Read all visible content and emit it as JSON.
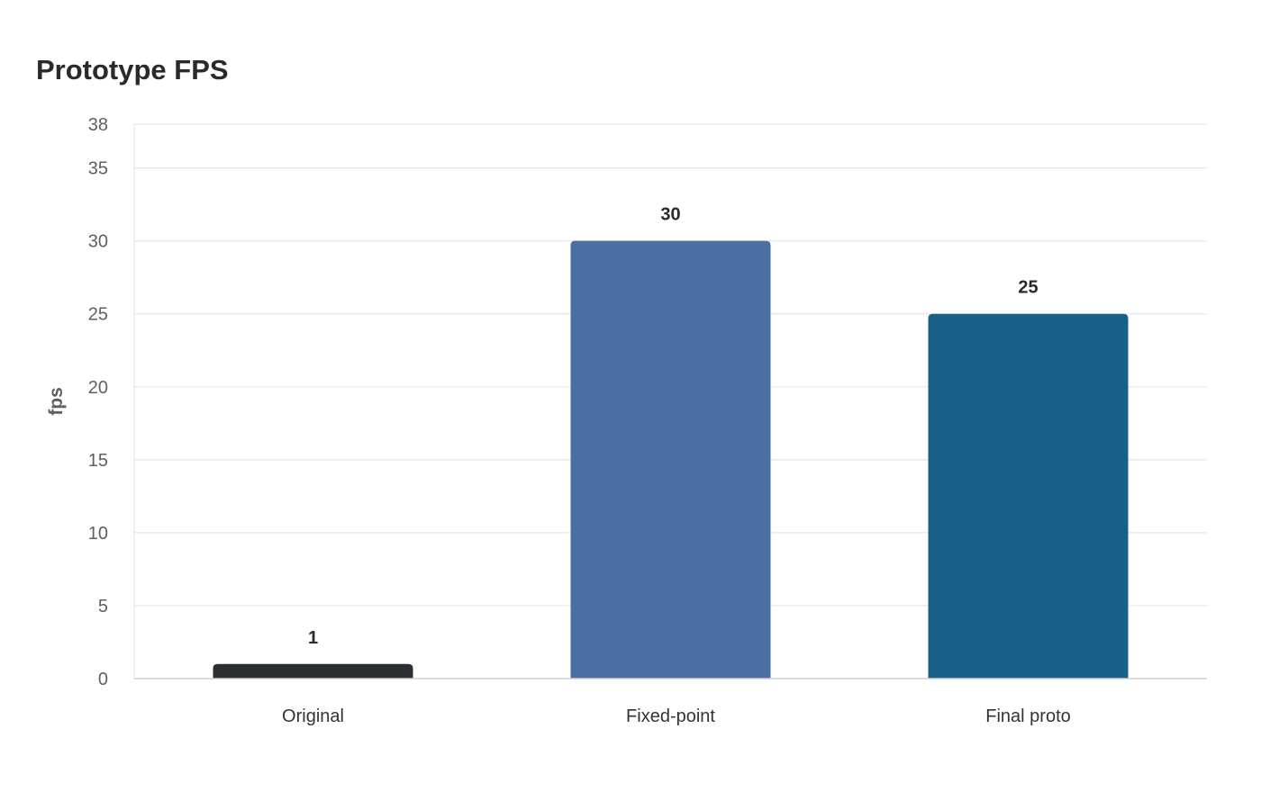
{
  "chart_data": {
    "type": "bar",
    "title": "Prototype FPS",
    "xlabel": "",
    "ylabel": "fps",
    "categories": [
      "Original",
      "Fixed-point",
      "Final proto"
    ],
    "values": [
      1,
      30,
      25
    ],
    "data_labels": [
      "1",
      "30",
      "25"
    ],
    "colors": [
      "#2b2f33",
      "#4a6fa3",
      "#186088"
    ],
    "ylim": [
      0,
      38
    ],
    "yticks": [
      0,
      5,
      10,
      15,
      20,
      25,
      30,
      35,
      38
    ],
    "grid": true,
    "legend": "none"
  }
}
